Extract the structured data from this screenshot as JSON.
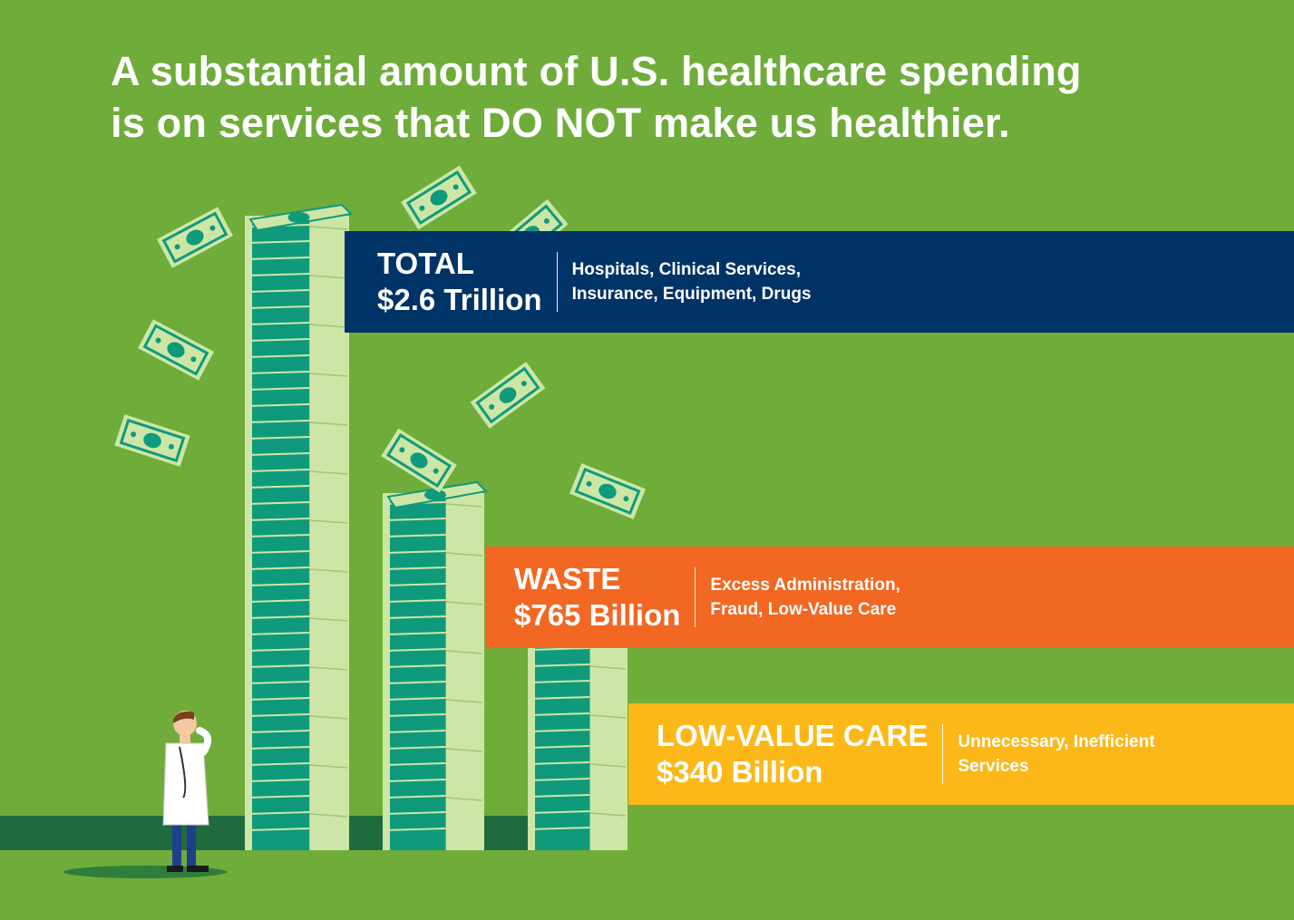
{
  "headline": {
    "line1": "A substantial amount of U.S. healthcare spending",
    "line2": "is on services that DO NOT make us healthier."
  },
  "colors": {
    "background": "#6fac3a",
    "total": "#003366",
    "waste": "#f26722",
    "low_value": "#fbb818",
    "bill_dark": "#0f9a7c",
    "bill_light": "#cde6a6"
  },
  "chart_data": {
    "type": "bar",
    "title": "A substantial amount of U.S. healthcare spending is on services that DO NOT make us healthier.",
    "unit": "USD billions",
    "categories": [
      "TOTAL",
      "WASTE",
      "LOW-VALUE CARE"
    ],
    "values": [
      2600,
      765,
      340
    ],
    "amount_labels": [
      "$2.6 Trillion",
      "$765 Billion",
      "$340 Billion"
    ],
    "descriptions": [
      [
        "Hospitals, Clinical Services,",
        "Insurance, Equipment, Drugs"
      ],
      [
        "Excess Administration,",
        "Fraud, Low-Value Care"
      ],
      [
        "Unnecessary, Inefficient",
        "Services"
      ]
    ]
  }
}
